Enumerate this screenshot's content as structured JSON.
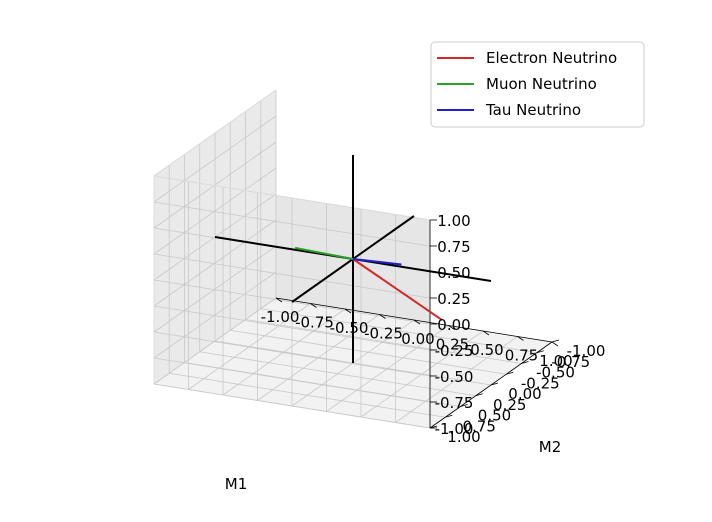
{
  "chart_data": {
    "type": "line3d",
    "xlabel": "M1",
    "ylabel": "M2",
    "zlabel": "",
    "xlim": [
      -1.0,
      1.0
    ],
    "ylim": [
      -1.0,
      1.0
    ],
    "zlim": [
      -1.0,
      1.0
    ],
    "ticks": [
      "-1.00",
      "-0.75",
      "-0.50",
      "-0.25",
      "0.00",
      "0.25",
      "0.50",
      "0.75",
      "1.00"
    ],
    "grid": true,
    "legend_position": "top-right",
    "series": [
      {
        "name": "Electron Neutrino",
        "color": "#d62728",
        "from": [
          0,
          0,
          0
        ],
        "to": [
          0.6,
          -0.1,
          -0.5
        ]
      },
      {
        "name": "Muon Neutrino",
        "color": "#2ca02c",
        "from": [
          0,
          0,
          0
        ],
        "to": [
          0.0,
          0.95,
          0.5
        ]
      },
      {
        "name": "Tau Neutrino",
        "color": "#1f1fcf",
        "from": [
          0,
          0,
          0
        ],
        "to": [
          0.55,
          0.45,
          0.25
        ]
      }
    ],
    "reference_axes": {
      "color": "#000000",
      "lines": [
        {
          "from": [
            -1,
            0,
            0
          ],
          "to": [
            1,
            0,
            0
          ]
        },
        {
          "from": [
            0,
            -1,
            0
          ],
          "to": [
            0,
            1,
            0
          ]
        },
        {
          "from": [
            0,
            0,
            -1
          ],
          "to": [
            0,
            0,
            1
          ]
        }
      ]
    }
  }
}
